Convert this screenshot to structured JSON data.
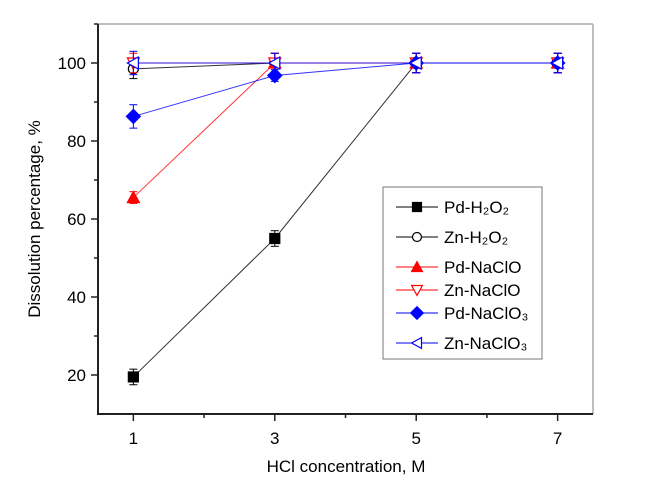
{
  "chart_data": {
    "type": "line",
    "title": "",
    "xlabel": "HCl concentration, M",
    "ylabel": "Dissolution percentage, %",
    "xlim": [
      0.5,
      7.5
    ],
    "ylim": [
      10,
      110
    ],
    "xticks": [
      1,
      3,
      5,
      7
    ],
    "xtick_labels": [
      "1",
      "3",
      "5",
      "7"
    ],
    "x_minor_ticks": [
      2,
      4,
      6
    ],
    "yticks": [
      20,
      40,
      60,
      80,
      100
    ],
    "ytick_labels": [
      "20",
      "40",
      "60",
      "80",
      "100"
    ],
    "y_minor_ticks": [
      30,
      50,
      70,
      90,
      110
    ],
    "grid": false,
    "legend_position": "center-right",
    "x": [
      1,
      3,
      5,
      7
    ],
    "series": [
      {
        "name": "Pd-H₂O₂",
        "color": "#000000",
        "marker": "square",
        "filled": true,
        "values": [
          19.5,
          55,
          100,
          100
        ],
        "errors": [
          2,
          2,
          2.5,
          2.5
        ]
      },
      {
        "name": "Zn-H₂O₂",
        "color": "#000000",
        "marker": "circle",
        "filled": false,
        "values": [
          98.5,
          100,
          100,
          100
        ],
        "errors": [
          2.5,
          2.5,
          2.5,
          2.5
        ]
      },
      {
        "name": "Pd-NaClO",
        "color": "#ff0000",
        "marker": "triangle-up",
        "filled": true,
        "values": [
          65.5,
          100,
          100,
          100
        ],
        "errors": [
          1.5,
          2.5,
          2.5,
          2.5
        ]
      },
      {
        "name": "Zn-NaClO",
        "color": "#ff0000",
        "marker": "triangle-down",
        "filled": false,
        "values": [
          100,
          100,
          100,
          100
        ],
        "errors": [
          2.5,
          2.5,
          2.5,
          2.5
        ]
      },
      {
        "name": "Pd-NaClO₃",
        "color": "#0000ff",
        "marker": "diamond",
        "filled": true,
        "values": [
          86.3,
          96.8,
          100,
          100
        ],
        "errors": [
          3,
          1.5,
          2.5,
          2.5
        ]
      },
      {
        "name": "Zn-NaClO₃",
        "color": "#0000ff",
        "marker": "triangle-left",
        "filled": false,
        "values": [
          100,
          100,
          100,
          100
        ],
        "errors": [
          3,
          2.5,
          2.5,
          2.5
        ]
      }
    ]
  }
}
